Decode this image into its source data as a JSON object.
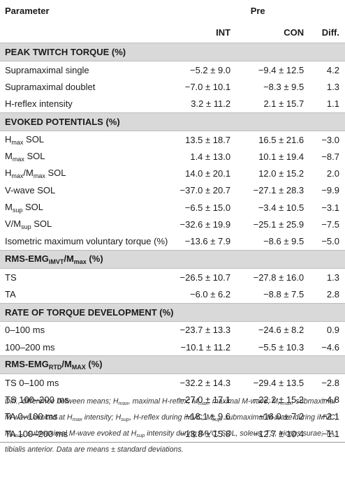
{
  "table": {
    "header": {
      "parameter": "Parameter",
      "group": "Pre",
      "int": "INT",
      "con": "CON",
      "diff": "Diff."
    },
    "sections": [
      {
        "title": "PEAK TWITCH TORQUE (%)",
        "rows": [
          {
            "p": "Supramaximal single",
            "int": "−5.2 ± 9.0",
            "con": "−9.4 ± 12.5",
            "diff": "4.2"
          },
          {
            "p": "Supramaximal doublet",
            "int": "−7.0 ± 10.1",
            "con": "−8.3 ± 9.5",
            "diff": "1.3"
          },
          {
            "p": "H-reflex intensity",
            "int": "3.2 ± 11.2",
            "con": "2.1 ± 15.7",
            "diff": "1.1"
          }
        ]
      },
      {
        "title": "EVOKED POTENTIALS (%)",
        "rows": [
          {
            "pm": "H",
            "ps": "max",
            "pa": " SOL",
            "int": "13.5 ± 18.7",
            "con": "16.5 ± 21.6",
            "diff": "−3.0"
          },
          {
            "pm": "M",
            "ps": "max",
            "pa": " SOL",
            "int": "1.4 ± 13.0",
            "con": "10.1 ± 19.4",
            "diff": "−8.7"
          },
          {
            "pm": "H",
            "ps": "max",
            "pm2": "/M",
            "ps2": "max",
            "pa": " SOL",
            "int": "14.0 ± 20.1",
            "con": "12.0 ± 15.2",
            "diff": "2.0"
          },
          {
            "p": "V-wave SOL",
            "int": "−37.0 ± 20.7",
            "con": "−27.1 ± 28.3",
            "diff": "−9.9"
          },
          {
            "pm": "M",
            "ps": "sup",
            "pa": " SOL",
            "int": "−6.5 ± 15.0",
            "con": "−3.4 ± 10.5",
            "diff": "−3.1"
          },
          {
            "pm": "V/M",
            "ps": "sup",
            "pa": " SOL",
            "int": "−32.6 ± 19.9",
            "con": "−25.1 ± 25.9",
            "diff": "−7.5"
          },
          {
            "p": "Isometric maximum voluntary torque (%)",
            "int": "−13.6 ± 7.9",
            "con": "−8.6 ± 9.5",
            "diff": "−5.0"
          }
        ]
      },
      {
        "title_main": "RMS-EMG",
        "title_sub": "iMVT",
        "title_main2": "/M",
        "title_sub2": "max",
        "title_tail": " (%)",
        "rows": [
          {
            "p": "TS",
            "int": "−26.5 ± 10.7",
            "con": "−27.8 ± 16.0",
            "diff": "1.3"
          },
          {
            "p": "TA",
            "int": "−6.0 ± 6.2",
            "con": "−8.8 ± 7.5",
            "diff": "2.8"
          }
        ]
      },
      {
        "title": "RATE OF TORQUE DEVELOPMENT (%)",
        "rows": [
          {
            "p": "0–100 ms",
            "int": "−23.7 ± 13.3",
            "con": "−24.6 ± 8.2",
            "diff": "0.9"
          },
          {
            "p": "100–200 ms",
            "int": "−10.1 ± 11.2",
            "con": "−5.5 ± 10.3",
            "diff": "−4.6"
          }
        ]
      },
      {
        "title_main": "RMS-EMG",
        "title_sub": "RTD",
        "title_main2": "/M",
        "title_sub2": "MAX",
        "title_tail": " (%)",
        "rows": [
          {
            "p": "TS 0–100 ms",
            "int": "−32.2 ± 14.3",
            "con": "−29.4 ± 13.5",
            "diff": "−2.8"
          },
          {
            "p": "TS 100–200 ms",
            "int": "−27.0 ± 17.1",
            "con": "−22.2 ± 15.2",
            "diff": "−4.8"
          },
          {
            "p": "TA 0–100 ms",
            "int": "−18.1 ± 9.6",
            "con": "−16.0 ± 7.2",
            "diff": "−2.1"
          },
          {
            "p": "TA 100–200 ms",
            "int": "−13.8 ± 15.8",
            "con": "−12.7 ± 10.4",
            "diff": "−1.1"
          }
        ]
      }
    ]
  },
  "footnote": {
    "diff_abbr": "Diff.",
    "diff_def": ", difference between means; ",
    "hmax": "H",
    "hmax_sub": "max",
    "hmax_def": ", maximal H-reflex; ",
    "mmax": "M",
    "mmax_sub": "max",
    "mmax_def": ", maximal M-wave; ",
    "mhmax": "M",
    "mhmax_sub": "Hmax",
    "mhmax_def_a": ", submaximal M-wave evoked at ",
    "mhmax_ref": "H",
    "mhmax_ref_sub": "max",
    "mhmax_def_b": " intensity; ",
    "hsup": "H",
    "hsup_sub": "sup",
    "hsup_def": ", H-reflex during iMVC; ",
    "msup": "M",
    "msup_sub": "sup",
    "msup_def": ", submaximal M-wave during iMVC; ",
    "mhsup": "M",
    "mhsup_sub": "Hsup",
    "mhsup_def_a": ", submaximal M-wave evoked at ",
    "mhsup_ref": "H",
    "mhsup_ref_sub": "sup",
    "mhsup_def_b": " intensity during iMVC; ",
    "tail": "SOL, soleus; TS, triceps surae; TA, tibialis anterior. Data are means ± standard deviations."
  }
}
